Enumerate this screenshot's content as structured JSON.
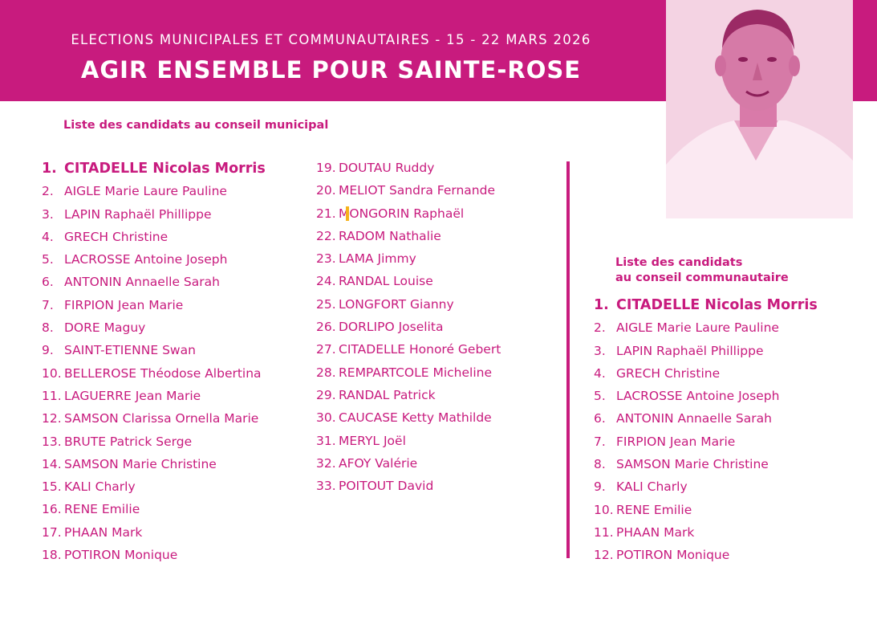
{
  "header": {
    "subtitle": "ELECTIONS MUNICIPALES ET COMMUNAUTAIRES - 15 - 22 MARS 2026",
    "title": "AGIR ENSEMBLE POUR SAINTE-ROSE",
    "color": "#c81b7e"
  },
  "municipal": {
    "heading": "Liste des candidats au conseil municipal",
    "column1": [
      {
        "num": "1.",
        "name": "CITADELLE Nicolas Morris"
      },
      {
        "num": "2.",
        "name": "AIGLE Marie Laure Pauline"
      },
      {
        "num": "3.",
        "name": "LAPIN Raphaël Phillippe"
      },
      {
        "num": "4.",
        "name": "GRECH Christine"
      },
      {
        "num": "5.",
        "name": "LACROSSE Antoine Joseph"
      },
      {
        "num": "6.",
        "name": "ANTONIN Annaelle Sarah"
      },
      {
        "num": "7.",
        "name": "FIRPION  Jean Marie"
      },
      {
        "num": "8.",
        "name": "DORE Maguy"
      },
      {
        "num": "9.",
        "name": "SAINT-ETIENNE Swan"
      },
      {
        "num": "10.",
        "name": "BELLEROSE Théodose Albertina"
      },
      {
        "num": "11.",
        "name": "LAGUERRE Jean Marie"
      },
      {
        "num": "12.",
        "name": "SAMSON Clarissa Ornella Marie"
      },
      {
        "num": "13.",
        "name": "BRUTE Patrick Serge"
      },
      {
        "num": "14.",
        "name": "SAMSON Marie Christine"
      },
      {
        "num": "15.",
        "name": "KALI Charly"
      },
      {
        "num": "16.",
        "name": "RENE Emilie"
      },
      {
        "num": "17.",
        "name": "PHAAN Mark"
      },
      {
        "num": "18.",
        "name": "POTIRON Monique"
      }
    ],
    "column2": [
      {
        "num": "19.",
        "name": "DOUTAU Ruddy"
      },
      {
        "num": "20.",
        "name": "MELIOT Sandra Fernande"
      },
      {
        "num": "21.",
        "name": "MONGORIN Raphaël"
      },
      {
        "num": "22.",
        "name": "RADOM Nathalie"
      },
      {
        "num": "23.",
        "name": "LAMA Jimmy"
      },
      {
        "num": "24.",
        "name": "RANDAL Louise"
      },
      {
        "num": "25.",
        "name": "LONGFORT Gianny"
      },
      {
        "num": "26.",
        "name": "DORLIPO Joselita"
      },
      {
        "num": "27.",
        "name": "CITADELLE Honoré Gebert"
      },
      {
        "num": "28.",
        "name": "REMPARTCOLE Micheline"
      },
      {
        "num": "29.",
        "name": "RANDAL  Patrick"
      },
      {
        "num": "30.",
        "name": "CAUCASE Ketty Mathilde"
      },
      {
        "num": "31.",
        "name": "MERYL Joël"
      },
      {
        "num": "32.",
        "name": "AFOY Valérie"
      },
      {
        "num": "33.",
        "name": "POITOUT David"
      }
    ]
  },
  "communautaire": {
    "heading_line1": "Liste des candidats",
    "heading_line2": "au conseil communautaire",
    "list": [
      {
        "num": "1.",
        "name": "CITADELLE Nicolas Morris"
      },
      {
        "num": "2.",
        "name": "AIGLE Marie Laure Pauline"
      },
      {
        "num": "3.",
        "name": "LAPIN Raphaël Phillippe"
      },
      {
        "num": "4.",
        "name": "GRECH Christine"
      },
      {
        "num": "5.",
        "name": "LACROSSE Antoine Joseph"
      },
      {
        "num": "6.",
        "name": "ANTONIN Annaelle Sarah"
      },
      {
        "num": "7.",
        "name": "FIRPION  Jean Marie"
      },
      {
        "num": "8.",
        "name": "SAMSON Marie Christine"
      },
      {
        "num": "9.",
        "name": "KALI Charly"
      },
      {
        "num": "10.",
        "name": "RENE Emilie"
      },
      {
        "num": "11.",
        "name": "PHAAN Mark"
      },
      {
        "num": "12.",
        "name": "POTIRON Monique"
      }
    ]
  },
  "photo": {
    "icon": "candidate-portrait"
  }
}
